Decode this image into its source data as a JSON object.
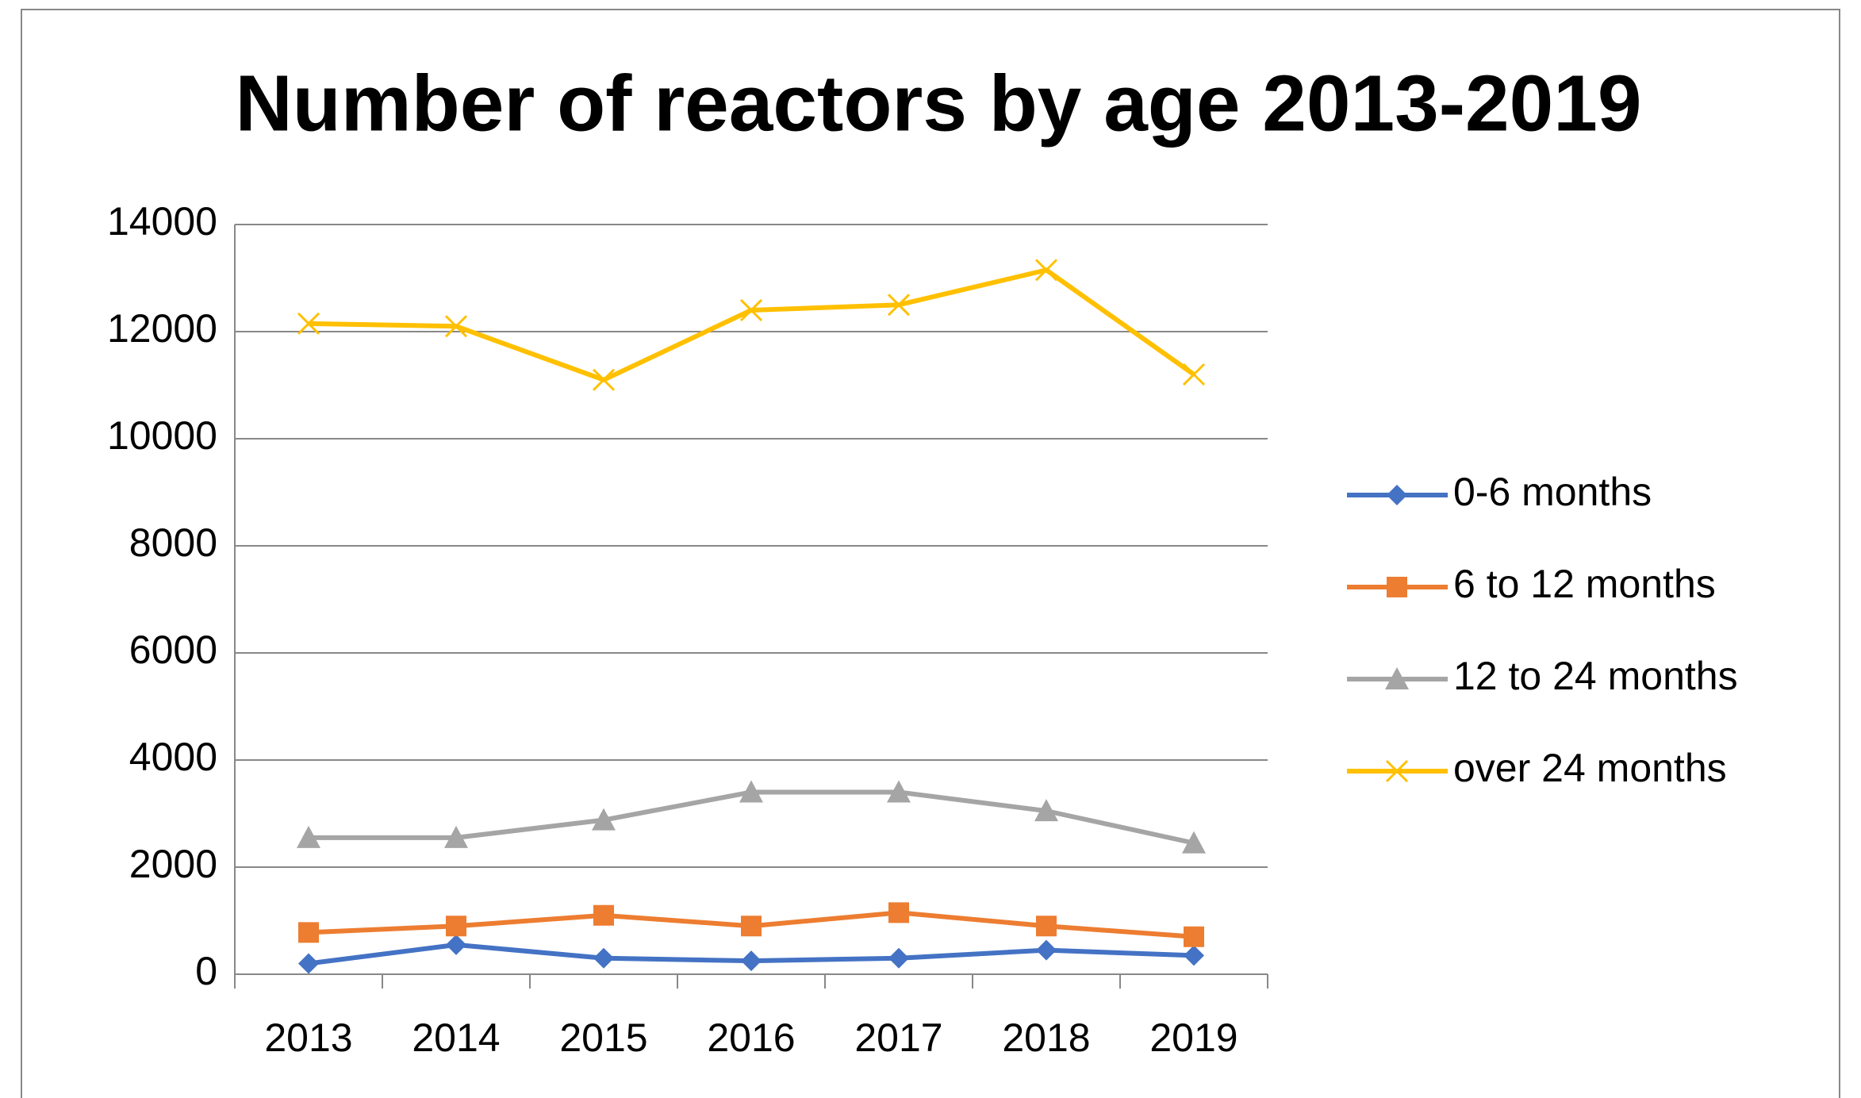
{
  "chart_data": {
    "type": "line",
    "title": "Number of reactors by age 2013-2019",
    "categories": [
      "2013",
      "2014",
      "2015",
      "2016",
      "2017",
      "2018",
      "2019"
    ],
    "series": [
      {
        "name": "0-6 months",
        "color": "#4472c4",
        "marker": "diamond",
        "values": [
          200,
          550,
          300,
          250,
          300,
          450,
          350
        ]
      },
      {
        "name": "6 to 12 months",
        "color": "#ed7d31",
        "marker": "square",
        "values": [
          780,
          900,
          1100,
          900,
          1150,
          900,
          700
        ]
      },
      {
        "name": "12 to 24 months",
        "color": "#a5a5a5",
        "marker": "triangle",
        "values": [
          2550,
          2550,
          2880,
          3400,
          3400,
          3050,
          2450
        ]
      },
      {
        "name": "over 24 months",
        "color": "#ffc000",
        "marker": "x",
        "values": [
          12150,
          12100,
          11100,
          12400,
          12500,
          13150,
          11200
        ]
      }
    ],
    "ylim": [
      0,
      14000
    ],
    "yticks": [
      0,
      2000,
      4000,
      6000,
      8000,
      10000,
      12000,
      14000
    ],
    "grid": true,
    "legend": "right"
  }
}
